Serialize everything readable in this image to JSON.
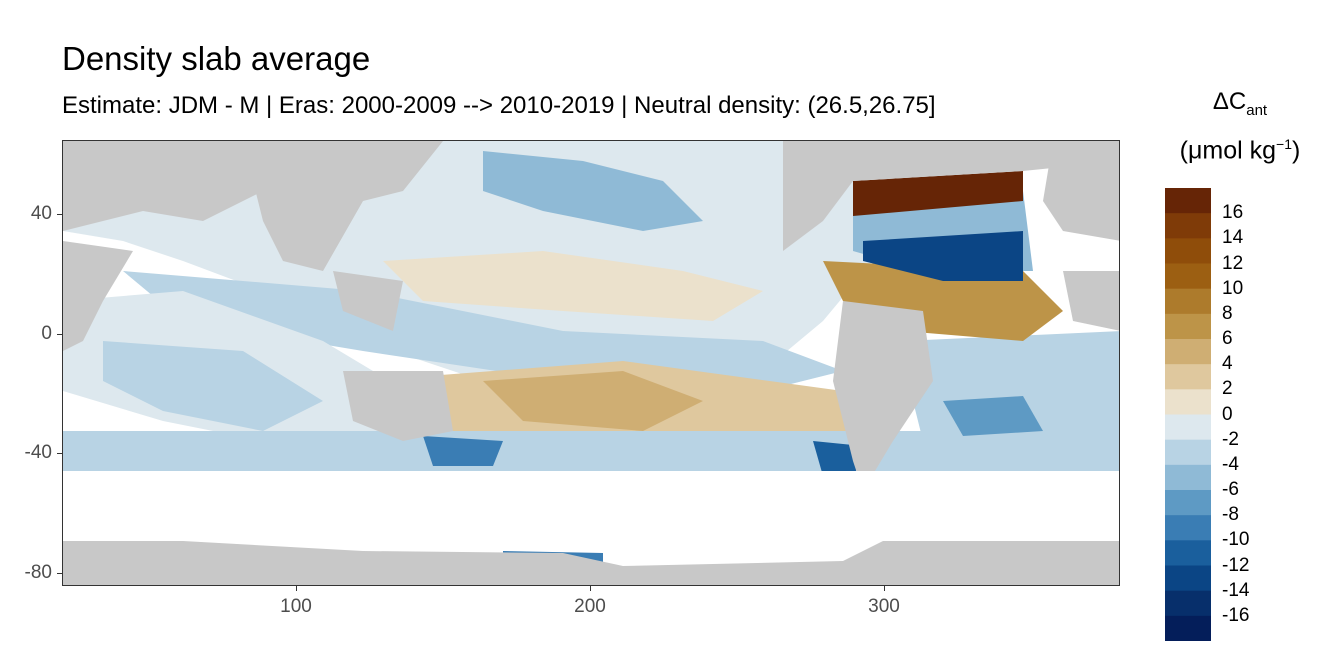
{
  "title": "Density slab average",
  "subtitle": "Estimate: JDM - M | Eras: 2000-2009 --> 2010-2019 | Neutral density: (26.5,26.75]",
  "legend": {
    "symbol": "ΔC",
    "symbol_sub": "ant",
    "unit_prefix": "(μmol kg",
    "unit_sup": "−1",
    "unit_suffix": ")",
    "labels": [
      "16",
      "14",
      "12",
      "10",
      "8",
      "6",
      "4",
      "2",
      "0",
      "-2",
      "-4",
      "-6",
      "-8",
      "-10",
      "-12",
      "-14",
      "-16"
    ],
    "colors": [
      "#662506",
      "#7f3b08",
      "#8f4d0a",
      "#9c5f12",
      "#ad7b2c",
      "#bd9448",
      "#cfae73",
      "#dfc89e",
      "#ebe1cc",
      "#dde8ee",
      "#b8d3e4",
      "#8fbad6",
      "#5e9ac4",
      "#3a7db4",
      "#1a5f9d",
      "#0b4585",
      "#072f6b",
      "#041e5a"
    ]
  },
  "colors": {
    "land": "#c8c8c8",
    "missing": "#ffffff",
    "grid": "#ebebeb"
  },
  "chart_data": {
    "type": "heatmap",
    "x_ticks": [
      "100",
      "200",
      "300"
    ],
    "y_ticks": [
      "40",
      "0",
      "-40",
      "-80"
    ],
    "xlim": [
      20,
      380
    ],
    "ylim": [
      -85,
      65
    ],
    "colorbar_range": [
      -18,
      18
    ],
    "colorbar_breaks": [
      -16,
      -14,
      -12,
      -10,
      -8,
      -6,
      -4,
      -2,
      0,
      2,
      4,
      6,
      8,
      10,
      12,
      14,
      16
    ],
    "field_summary": {
      "north_atlantic_subpolar": 16,
      "north_atlantic_subtropical": -10,
      "south_pacific_subtropical": 4,
      "equatorial_pacific": -2,
      "southern_ocean_band": -4
    }
  }
}
